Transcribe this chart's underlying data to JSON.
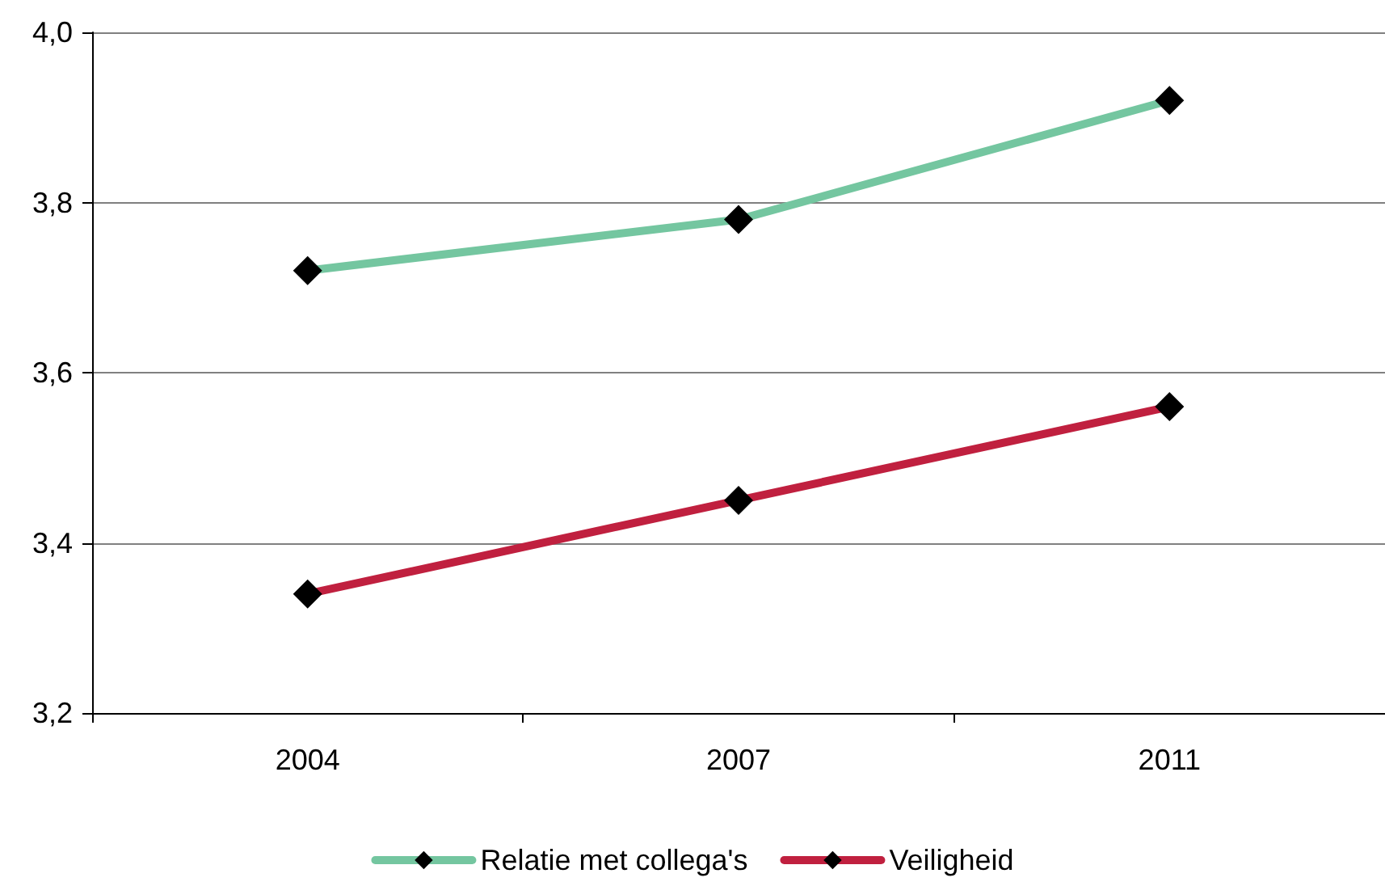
{
  "chart_data": {
    "type": "line",
    "categories": [
      "2004",
      "2007",
      "2011"
    ],
    "series": [
      {
        "name": "Relatie met collega's",
        "color": "#74c6a0",
        "values": [
          3.72,
          3.78,
          3.92
        ]
      },
      {
        "name": "Veiligheid",
        "color": "#c0203f",
        "values": [
          3.34,
          3.45,
          3.56
        ]
      }
    ],
    "ylim": [
      3.2,
      4.0
    ],
    "yticks": [
      {
        "value": 3.2,
        "label": "3,2"
      },
      {
        "value": 3.4,
        "label": "3,4"
      },
      {
        "value": 3.6,
        "label": "3,6"
      },
      {
        "value": 3.8,
        "label": "3,8"
      },
      {
        "value": 4.0,
        "label": "4,0"
      }
    ],
    "grid": "y",
    "legend": "bottom",
    "marker": "diamond",
    "line_style": "solid"
  }
}
